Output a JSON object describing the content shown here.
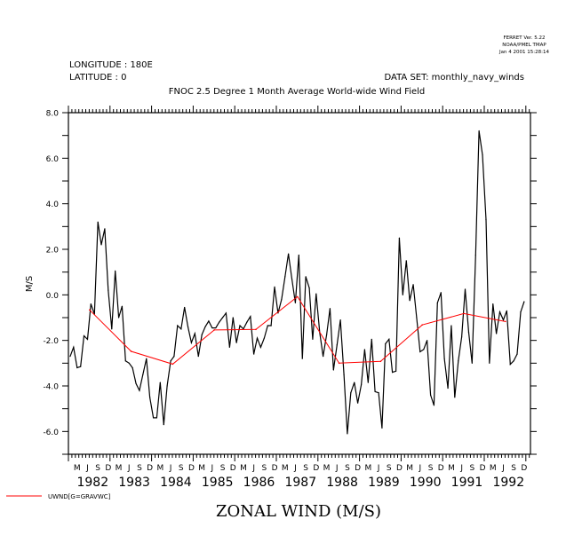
{
  "header": {
    "ferret_version": "FERRET Ver. 5.22",
    "ferret_org": "NOAA/PMEL TMAP",
    "ferret_date": "Jan  4 2001 15:28:14",
    "longitude": "LONGITUDE : 180E",
    "latitude": "LATITUDE : 0",
    "dataset": "DATA SET: monthly_navy_winds",
    "title": "FNOC 2.5 Degree 1 Month Average World-wide Wind Field"
  },
  "chart_data": {
    "type": "line",
    "title": "FNOC 2.5 Degree 1 Month Average World-wide Wind Field",
    "xlabel": "ZONAL WIND (M/S)",
    "ylabel": "M/S",
    "ylim": [
      -7,
      8
    ],
    "xlim": [
      "1982-01",
      "1993-02"
    ],
    "yticks": [
      "8.0",
      "6.0",
      "4.0",
      "2.0",
      "0.0",
      "-2.0",
      "-4.0",
      "-6.0"
    ],
    "ytick_values": [
      8,
      6,
      4,
      2,
      0,
      -2,
      -4,
      -6
    ],
    "month_labels": [
      "M",
      "J",
      "S",
      "D"
    ],
    "years": [
      "1982",
      "1983",
      "1984",
      "1985",
      "1986",
      "1987",
      "1988",
      "1989",
      "1990",
      "1991",
      "1992"
    ],
    "grid": false,
    "legend": {
      "placement": "bottom-left",
      "label": "UWND[G=GRAVWC]"
    },
    "series": [
      {
        "color": "#000000",
        "start": "1982-01",
        "frequency": "monthly",
        "values": [
          -2.7,
          -2.3,
          -3.2,
          -3.15,
          -1.8,
          -1.95,
          -0.4,
          -0.85,
          3.2,
          2.2,
          2.9,
          0.2,
          -1.5,
          1.05,
          -1.0,
          -0.5,
          -2.9,
          -3.0,
          -3.2,
          -3.9,
          -4.2,
          -3.5,
          -2.8,
          -4.5,
          -5.4,
          -5.4,
          -3.85,
          -5.7,
          -4.0,
          -2.9,
          -2.7,
          -1.35,
          -1.5,
          -0.55,
          -1.4,
          -2.1,
          -1.7,
          -2.7,
          -1.75,
          -1.4,
          -1.15,
          -1.45,
          -1.45,
          -1.2,
          -1.0,
          -0.8,
          -2.3,
          -1.0,
          -2.1,
          -1.35,
          -1.5,
          -1.2,
          -0.95,
          -2.6,
          -1.9,
          -2.3,
          -1.9,
          -1.35,
          -1.35,
          0.35,
          -0.8,
          -0.2,
          0.8,
          1.8,
          0.7,
          -0.35,
          1.75,
          -2.8,
          0.8,
          0.3,
          -1.95,
          0.05,
          -1.65,
          -2.7,
          -1.75,
          -0.6,
          -3.3,
          -2.2,
          -1.1,
          -3.5,
          -6.1,
          -4.3,
          -3.85,
          -4.75,
          -3.95,
          -2.4,
          -3.85,
          -1.95,
          -4.25,
          -4.3,
          -5.85,
          -2.15,
          -1.95,
          -3.4,
          -3.35,
          2.5,
          0.0,
          1.5,
          -0.25,
          0.45,
          -1.0,
          -2.5,
          -2.4,
          -2.0,
          -4.4,
          -4.85,
          -0.35,
          0.1,
          -2.8,
          -4.1,
          -1.35,
          -4.5,
          -2.9,
          -1.85,
          0.25,
          -1.65,
          -3.0,
          1.75,
          7.2,
          6.15,
          3.3,
          -3.0,
          -0.4,
          -1.7,
          -0.75,
          -1.1,
          -0.7,
          -3.05,
          -2.9,
          -2.6,
          -0.75,
          -0.3
        ]
      },
      {
        "name": "UWND[G=GRAVWC]",
        "color": "#ff0000",
        "frequency": "annual",
        "x": [
          "1982",
          "1983",
          "1984",
          "1985",
          "1986",
          "1987",
          "1988",
          "1989",
          "1990",
          "1991",
          "1992"
        ],
        "values": [
          -0.66,
          -2.48,
          -3.04,
          -1.54,
          -1.52,
          -0.08,
          -3.0,
          -2.92,
          -1.32,
          -0.82,
          -1.17
        ]
      }
    ]
  }
}
